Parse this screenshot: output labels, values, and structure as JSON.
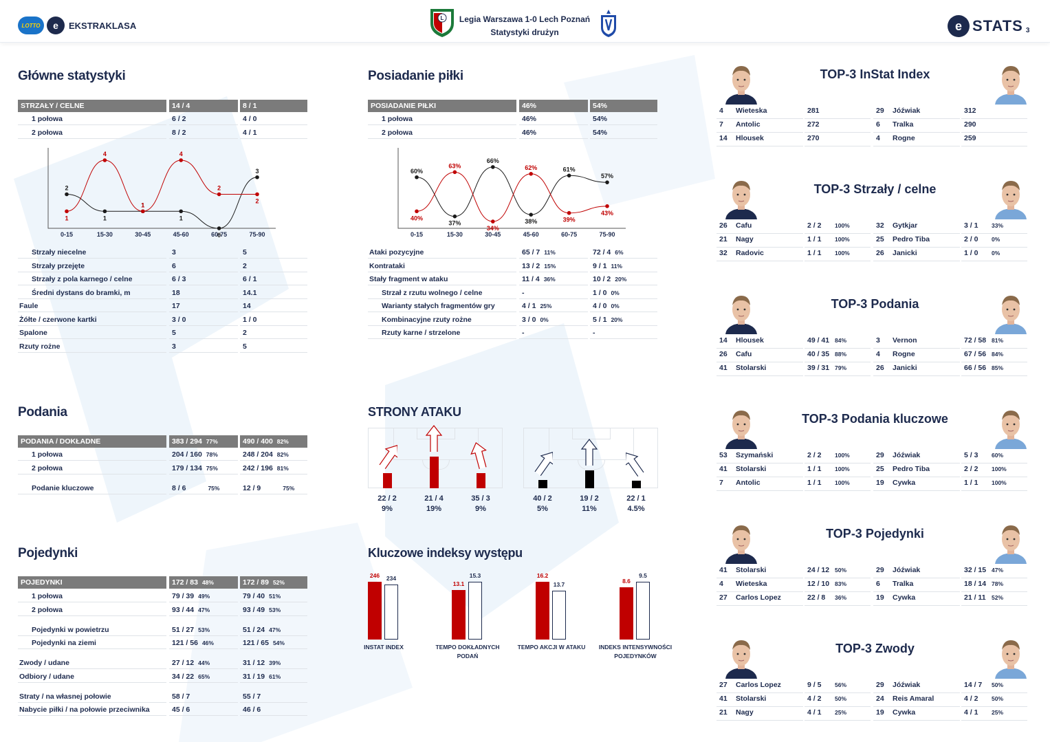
{
  "header": {
    "brand_lotto": "LOTTO",
    "brand": "EKSTRAKLASA",
    "match_line1": "Legia Warszawa 1-0 Lech Poznań",
    "match_line2": "Statystyki drużyn",
    "stats": "STATS",
    "page": "3"
  },
  "main_stats": {
    "title": "Główne statystyki",
    "head": [
      "STRZAŁY / CELNE",
      "14 / 4",
      "8 / 1"
    ],
    "halves": [
      [
        "1 połowa",
        "6 / 2",
        "4 / 0"
      ],
      [
        "2 połowa",
        "8 / 2",
        "4 / 1"
      ]
    ],
    "rows": [
      [
        "Strzały niecelne",
        "3",
        "5",
        true
      ],
      [
        "Strzały przejęte",
        "6",
        "2",
        true
      ],
      [
        "Strzały z pola karnego / celne",
        "6 / 3",
        "6 / 1",
        true
      ],
      [
        "Średni dystans do bramki, m",
        "18",
        "14.1",
        true
      ],
      [
        "Faule",
        "17",
        "14",
        false
      ],
      [
        "Żółte / czerwone kartki",
        "3 / 0",
        "1 / 0",
        false
      ],
      [
        "Spalone",
        "5",
        "2",
        false
      ],
      [
        "Rzuty rożne",
        "3",
        "5",
        false
      ]
    ]
  },
  "chart_shots": {
    "type": "line",
    "categories": [
      "0-15",
      "15-30",
      "30-45",
      "45-60",
      "60-75",
      "75-90"
    ],
    "series": [
      {
        "values": [
          2,
          1,
          1,
          1,
          0,
          3
        ],
        "color": "#1a1a1a"
      },
      {
        "values": [
          1,
          4,
          1,
          4,
          2,
          2
        ],
        "color": "#c00000"
      }
    ],
    "ylim": [
      0,
      4
    ]
  },
  "possession": {
    "title": "Posiadanie piłki",
    "head": [
      "POSIADANIE PIŁKI",
      "46%",
      "54%"
    ],
    "halves": [
      [
        "1 połowa",
        "46%",
        "54%"
      ],
      [
        "2 połowa",
        "46%",
        "54%"
      ]
    ],
    "rows": [
      [
        "Ataki pozycyjne",
        "65 / 7",
        "11%",
        "72 / 4",
        "6%",
        false
      ],
      [
        "Kontrataki",
        "13 / 2",
        "15%",
        "9 / 1",
        "11%",
        false
      ],
      [
        "Stały fragment w ataku",
        "11 / 4",
        "36%",
        "10 / 2",
        "20%",
        false
      ],
      [
        "Strzał z rzutu wolnego / celne",
        "-",
        "",
        "1 / 0",
        "0%",
        true
      ],
      [
        "Warianty stałych fragmentów gry",
        "4 / 1",
        "25%",
        "4 / 0",
        "0%",
        true
      ],
      [
        "Kombinacyjne rzuty rożne",
        "3 / 0",
        "0%",
        "5 / 1",
        "20%",
        true
      ],
      [
        "Rzuty karne / strzelone",
        "-",
        "",
        "-",
        "",
        true
      ]
    ]
  },
  "chart_possession": {
    "type": "line",
    "categories": [
      "0-15",
      "15-30",
      "30-45",
      "45-60",
      "60-75",
      "75-90"
    ],
    "series": [
      {
        "values": [
          60,
          37,
          66,
          38,
          61,
          57
        ],
        "color": "#1a1a1a"
      },
      {
        "values": [
          40,
          63,
          34,
          62,
          39,
          43
        ],
        "color": "#c00000"
      }
    ],
    "ylim": [
      30,
      70
    ],
    "unit": "%"
  },
  "passes": {
    "title": "Podania",
    "head": [
      "PODANIA / DOKŁADNE",
      "383 / 294",
      "77%",
      "490 / 400",
      "82%"
    ],
    "rows": [
      [
        "1 połowa",
        "204 / 160",
        "78%",
        "248 / 204",
        "82%"
      ],
      [
        "2 połowa",
        "179 / 134",
        "75%",
        "242 / 196",
        "81%"
      ]
    ],
    "key": [
      "Podanie kluczowe",
      "8 / 6",
      "75%",
      "12 / 9",
      "75%"
    ]
  },
  "attack": {
    "title": "STRONY ATAKU",
    "home": [
      {
        "v": "22 / 2",
        "p": "9%",
        "frac": 0.09
      },
      {
        "v": "21 / 4",
        "p": "19%",
        "frac": 0.19
      },
      {
        "v": "35 / 3",
        "p": "9%",
        "frac": 0.09
      }
    ],
    "away": [
      {
        "v": "40 / 2",
        "p": "5%",
        "frac": 0.05
      },
      {
        "v": "19 / 2",
        "p": "11%",
        "frac": 0.11
      },
      {
        "v": "22 / 1",
        "p": "4.5%",
        "frac": 0.045
      }
    ]
  },
  "duels": {
    "title": "Pojedynki",
    "head": [
      "POJEDYNKI",
      "172 / 83",
      "48%",
      "172 / 89",
      "52%"
    ],
    "groups": [
      [
        [
          "1 połowa",
          "79 / 39",
          "49%",
          "79 / 40",
          "51%",
          true
        ],
        [
          "2 połowa",
          "93 / 44",
          "47%",
          "93 / 49",
          "53%",
          true
        ]
      ],
      [
        [
          "Pojedynki w powietrzu",
          "51 / 27",
          "53%",
          "51 / 24",
          "47%",
          true
        ],
        [
          "Pojedynki na ziemi",
          "121 / 56",
          "46%",
          "121 / 65",
          "54%",
          true
        ]
      ],
      [
        [
          "Zwody / udane",
          "27 / 12",
          "44%",
          "31 / 12",
          "39%",
          false
        ],
        [
          "Odbiory / udane",
          "34 / 22",
          "65%",
          "31 / 19",
          "61%",
          false
        ]
      ],
      [
        [
          "Straty / na własnej połowie",
          "58 / 7",
          "",
          "55 / 7",
          "",
          false
        ],
        [
          "Nabycie piłki / na połowie przeciwnika",
          "45 / 6",
          "",
          "46 / 6",
          "",
          false
        ]
      ]
    ]
  },
  "indexes": {
    "title": "Kluczowe indeksy występu",
    "items": [
      {
        "label1": "INSTAT INDEX",
        "label2": "",
        "a": "246",
        "b": "234",
        "av": 246,
        "bv": 234
      },
      {
        "label1": "TEMPO DOKŁADNYCH",
        "label2": "PODAŃ",
        "a": "13.1",
        "b": "15.3",
        "av": 13.1,
        "bv": 15.3
      },
      {
        "label1": "TEMPO AKCJI W ATAKU",
        "label2": "",
        "a": "16.2",
        "b": "13.7",
        "av": 16.2,
        "bv": 13.7
      },
      {
        "label1": "INDEKS INTENSYWNOŚCI",
        "label2": "POJEDYNKÓW",
        "a": "8.6",
        "b": "9.5",
        "av": 8.6,
        "bv": 9.5
      }
    ]
  },
  "top3": [
    {
      "title": "TOP-3 InStat Index",
      "home": [
        [
          "4",
          "Wieteska",
          "281",
          ""
        ],
        [
          "7",
          "Antolic",
          "272",
          ""
        ],
        [
          "14",
          "Hlousek",
          "270",
          ""
        ]
      ],
      "away": [
        [
          "29",
          "Jóźwiak",
          "312",
          ""
        ],
        [
          "6",
          "Tralka",
          "290",
          ""
        ],
        [
          "4",
          "Rogne",
          "259",
          ""
        ]
      ]
    },
    {
      "title": "TOP-3 Strzały / celne",
      "home": [
        [
          "26",
          "Cafu",
          "2 / 2",
          "100%"
        ],
        [
          "21",
          "Nagy",
          "1 / 1",
          "100%"
        ],
        [
          "32",
          "Radovic",
          "1 / 1",
          "100%"
        ]
      ],
      "away": [
        [
          "32",
          "Gytkjar",
          "3 / 1",
          "33%"
        ],
        [
          "25",
          "Pedro Tiba",
          "2 / 0",
          "0%"
        ],
        [
          "26",
          "Janicki",
          "1 / 0",
          "0%"
        ]
      ]
    },
    {
      "title": "TOP-3 Podania",
      "home": [
        [
          "14",
          "Hlousek",
          "49 / 41",
          "84%"
        ],
        [
          "26",
          "Cafu",
          "40 / 35",
          "88%"
        ],
        [
          "41",
          "Stolarski",
          "39 / 31",
          "79%"
        ]
      ],
      "away": [
        [
          "3",
          "Vernon",
          "72 / 58",
          "81%"
        ],
        [
          "4",
          "Rogne",
          "67 / 56",
          "84%"
        ],
        [
          "26",
          "Janicki",
          "66 / 56",
          "85%"
        ]
      ]
    },
    {
      "title": "TOP-3 Podania kluczowe",
      "home": [
        [
          "53",
          "Szymański",
          "2 / 2",
          "100%"
        ],
        [
          "41",
          "Stolarski",
          "1 / 1",
          "100%"
        ],
        [
          "7",
          "Antolic",
          "1 / 1",
          "100%"
        ]
      ],
      "away": [
        [
          "29",
          "Jóźwiak",
          "5 / 3",
          "60%"
        ],
        [
          "25",
          "Pedro Tiba",
          "2 / 2",
          "100%"
        ],
        [
          "19",
          "Cywka",
          "1 / 1",
          "100%"
        ]
      ]
    },
    {
      "title": "TOP-3 Pojedynki",
      "home": [
        [
          "41",
          "Stolarski",
          "24 / 12",
          "50%"
        ],
        [
          "4",
          "Wieteska",
          "12 / 10",
          "83%"
        ],
        [
          "27",
          "Carlos Lopez",
          "22 / 8",
          "36%"
        ]
      ],
      "away": [
        [
          "29",
          "Jóźwiak",
          "32 / 15",
          "47%"
        ],
        [
          "6",
          "Tralka",
          "18 / 14",
          "78%"
        ],
        [
          "19",
          "Cywka",
          "21 / 11",
          "52%"
        ]
      ]
    },
    {
      "title": "TOP-3 Zwody",
      "home": [
        [
          "27",
          "Carlos Lopez",
          "9 / 5",
          "56%"
        ],
        [
          "41",
          "Stolarski",
          "4 / 2",
          "50%"
        ],
        [
          "21",
          "Nagy",
          "4 / 1",
          "25%"
        ]
      ],
      "away": [
        [
          "29",
          "Jóźwiak",
          "14 / 7",
          "50%"
        ],
        [
          "24",
          "Reis Amaral",
          "4 / 2",
          "50%"
        ],
        [
          "19",
          "Cywka",
          "4 / 1",
          "25%"
        ]
      ]
    }
  ],
  "colors": {
    "navy": "#1d2a4d",
    "red": "#c00000",
    "grey": "#7b7b7b"
  }
}
